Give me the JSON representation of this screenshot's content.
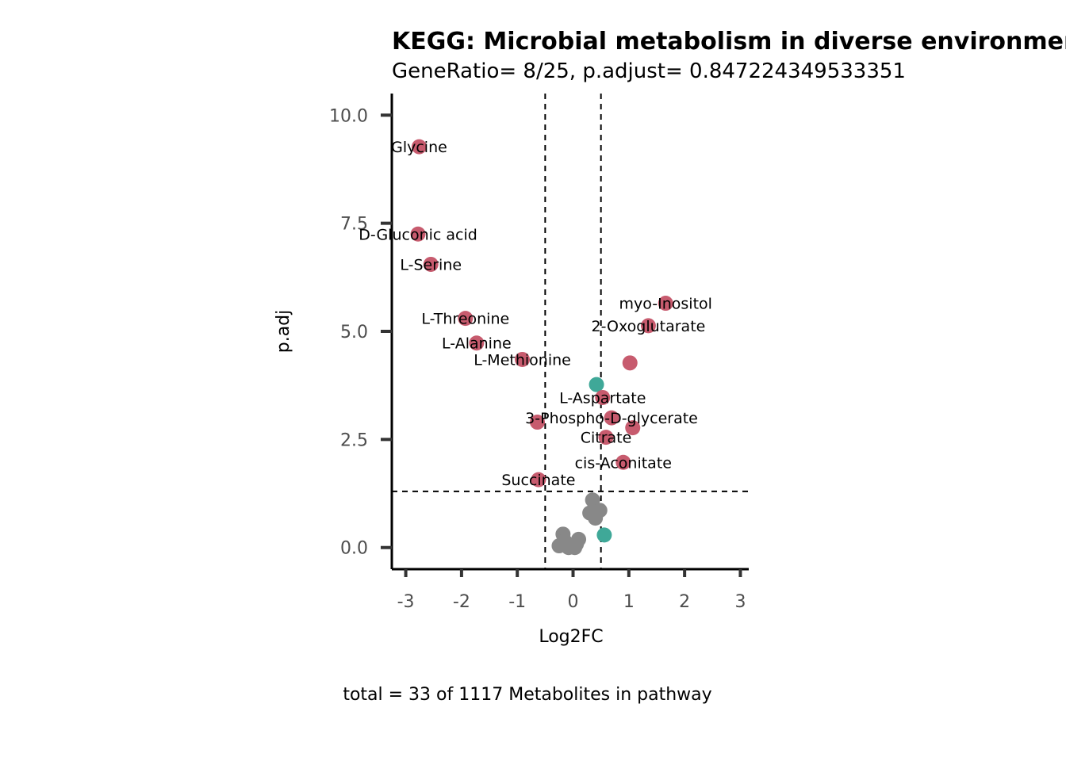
{
  "chart_data": {
    "type": "scatter",
    "title": "KEGG: Microbial metabolism in diverse environments",
    "subtitle": "GeneRatio= 8/25, p.adjust= 0.847224349533351",
    "xlabel": "Log2FC",
    "ylabel": "p.adj",
    "caption": "total = 33 of 1117 Metabolites in pathway",
    "xlim": [
      -3.25,
      3.15
    ],
    "ylim": [
      -0.5,
      10.5
    ],
    "x_ticks": [
      -3,
      -2,
      -1,
      0,
      1,
      2,
      3
    ],
    "x_tick_labels": [
      "-3",
      "-2",
      "-1",
      "0",
      "1",
      "2",
      "3"
    ],
    "y_ticks": [
      0.0,
      2.5,
      5.0,
      7.5,
      10.0
    ],
    "y_tick_labels": [
      "0.0",
      "2.5",
      "5.0",
      "7.5",
      "10.0"
    ],
    "vlines": [
      -0.5,
      0.5
    ],
    "hline": 1.3,
    "colors": {
      "significant": "#c75b6e",
      "teal": "#3fa898",
      "nonsignificant": "#888888"
    },
    "points": [
      {
        "label": "Glycine",
        "x": -2.76,
        "y": 9.27,
        "group": "significant"
      },
      {
        "label": "D-Gluconic acid",
        "x": -2.78,
        "y": 7.25,
        "group": "significant"
      },
      {
        "label": "L-Serine",
        "x": -2.55,
        "y": 6.55,
        "group": "significant"
      },
      {
        "label": "L-Threonine",
        "x": -1.93,
        "y": 5.3,
        "group": "significant"
      },
      {
        "label": "L-Alanine",
        "x": -1.73,
        "y": 4.73,
        "group": "significant"
      },
      {
        "label": "L-Methionine",
        "x": -0.91,
        "y": 4.35,
        "group": "significant"
      },
      {
        "label": "myo-Inositol",
        "x": 1.66,
        "y": 5.65,
        "group": "significant"
      },
      {
        "label": "2-Oxoglutarate",
        "x": 1.35,
        "y": 5.13,
        "group": "significant"
      },
      {
        "label": "",
        "x": 1.02,
        "y": 4.27,
        "group": "significant"
      },
      {
        "label": "",
        "x": 0.42,
        "y": 3.77,
        "group": "teal"
      },
      {
        "label": "L-Aspartate",
        "x": 0.53,
        "y": 3.47,
        "group": "significant"
      },
      {
        "label": "3-Phospho-D-glycerate",
        "x": 0.69,
        "y": 3.0,
        "group": "significant"
      },
      {
        "label": "",
        "x": -0.64,
        "y": 2.9,
        "group": "significant"
      },
      {
        "label": "",
        "x": 1.07,
        "y": 2.77,
        "group": "significant"
      },
      {
        "label": "Citrate",
        "x": 0.59,
        "y": 2.55,
        "group": "significant"
      },
      {
        "label": "cis-Aconitate",
        "x": 0.9,
        "y": 1.97,
        "group": "significant"
      },
      {
        "label": "Succinate",
        "x": -0.62,
        "y": 1.57,
        "group": "significant"
      },
      {
        "label": "",
        "x": 0.56,
        "y": 0.29,
        "group": "teal"
      },
      {
        "label": "",
        "x": 0.35,
        "y": 1.1,
        "group": "nonsignificant"
      },
      {
        "label": "",
        "x": 0.48,
        "y": 0.86,
        "group": "nonsignificant"
      },
      {
        "label": "",
        "x": 0.3,
        "y": 0.8,
        "group": "nonsignificant"
      },
      {
        "label": "",
        "x": 0.38,
        "y": 0.75,
        "group": "nonsignificant"
      },
      {
        "label": "",
        "x": 0.4,
        "y": 0.68,
        "group": "nonsignificant"
      },
      {
        "label": "",
        "x": -0.18,
        "y": 0.31,
        "group": "nonsignificant"
      },
      {
        "label": "",
        "x": 0.1,
        "y": 0.19,
        "group": "nonsignificant"
      },
      {
        "label": "",
        "x": -0.25,
        "y": 0.04,
        "group": "nonsignificant"
      },
      {
        "label": "",
        "x": -0.08,
        "y": 0.0,
        "group": "nonsignificant"
      },
      {
        "label": "",
        "x": -0.02,
        "y": 0.03,
        "group": "nonsignificant"
      },
      {
        "label": "",
        "x": 0.03,
        "y": 0.0,
        "group": "nonsignificant"
      },
      {
        "label": "",
        "x": 0.06,
        "y": 0.08,
        "group": "nonsignificant"
      },
      {
        "label": "",
        "x": -0.15,
        "y": 0.15,
        "group": "nonsignificant"
      }
    ]
  }
}
